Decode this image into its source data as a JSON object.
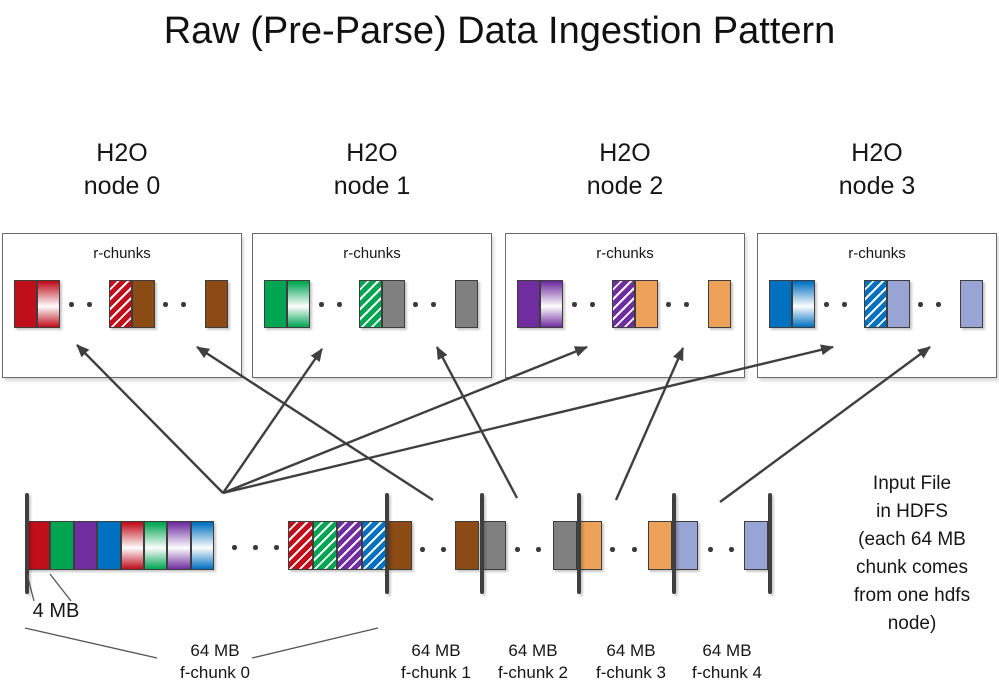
{
  "title": "Raw (Pre-Parse) Data Ingestion Pattern",
  "colors": {
    "red": "#C00E1B",
    "green": "#00A551",
    "purple": "#6F2DA0",
    "blue": "#0070C0",
    "brown": "#8C4A15",
    "gray": "#808080",
    "orange": "#EDA159",
    "lavender": "#98A4D3",
    "arrow": "#3F3F3F",
    "box_border": "#6A6A6A"
  },
  "nodes": [
    {
      "line1": "H2O",
      "line2": "node 0",
      "box_label": "r-chunks",
      "chunks": [
        "red-solid",
        "red-gradient",
        "red-hatched",
        "brown-solid",
        "brown-solid"
      ]
    },
    {
      "line1": "H2O",
      "line2": "node 1",
      "box_label": "r-chunks",
      "chunks": [
        "green-solid",
        "green-gradient",
        "green-hatched",
        "gray-solid",
        "gray-solid"
      ]
    },
    {
      "line1": "H2O",
      "line2": "node 2",
      "box_label": "r-chunks",
      "chunks": [
        "purple-solid",
        "purple-gradient",
        "purple-hatched",
        "orange-solid",
        "orange-solid"
      ]
    },
    {
      "line1": "H2O",
      "line2": "node 3",
      "box_label": "r-chunks",
      "chunks": [
        "blue-solid",
        "blue-gradient",
        "blue-hatched",
        "lavender-solid",
        "lavender-solid"
      ]
    }
  ],
  "strip": {
    "four_mb_label": "4 MB",
    "chunks": [
      "red-solid",
      "green-solid",
      "purple-solid",
      "blue-solid",
      "red-gradient",
      "green-gradient",
      "purple-gradient",
      "blue-gradient",
      "red-hatched",
      "green-hatched",
      "purple-hatched",
      "blue-hatched",
      "brown-solid",
      "brown-solid",
      "gray-solid",
      "gray-solid",
      "orange-solid",
      "orange-solid",
      "lavender-solid",
      "lavender-solid"
    ],
    "fchunks": [
      {
        "size": "64 MB",
        "name": "f-chunk 0"
      },
      {
        "size": "64 MB",
        "name": "f-chunk 1"
      },
      {
        "size": "64 MB",
        "name": "f-chunk 2"
      },
      {
        "size": "64 MB",
        "name": "f-chunk 3"
      },
      {
        "size": "64 MB",
        "name": "f-chunk 4"
      }
    ]
  },
  "side_note": {
    "lines": [
      "Input File",
      "in HDFS",
      "(each 64 MB",
      "chunk comes",
      "from one hdfs",
      "node)"
    ]
  }
}
